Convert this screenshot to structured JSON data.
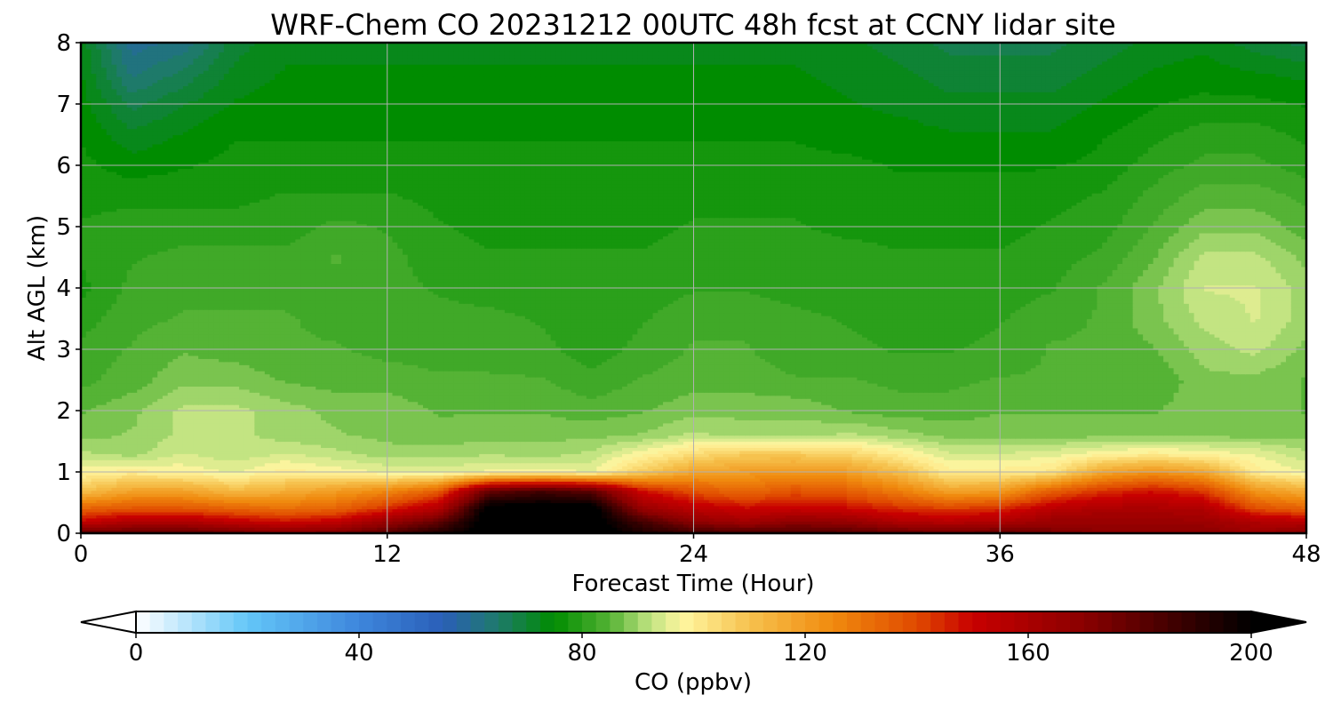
{
  "chart_data": {
    "type": "heatmap",
    "subtype": "filled-contour time-height cross-section",
    "title": "WRF-Chem CO  20231212 00UTC 48h fcst at CCNY lidar site",
    "xlabel": "Forecast Time (Hour)",
    "ylabel": "Alt AGL (km)",
    "xlim": [
      0,
      48
    ],
    "ylim": [
      0,
      8
    ],
    "xticks": [
      "0",
      "12",
      "24",
      "36",
      "48"
    ],
    "yticks": [
      "0",
      "1",
      "2",
      "3",
      "4",
      "5",
      "6",
      "7",
      "8"
    ],
    "grid": true,
    "colorbar": {
      "label": "CO  (ppbv)",
      "range": [
        0,
        200
      ],
      "ticks": [
        "0",
        "40",
        "80",
        "120",
        "160",
        "200"
      ],
      "extend": "both",
      "colors": [
        {
          "v": 0,
          "c": "#ffffff"
        },
        {
          "v": 20,
          "c": "#63c6f8"
        },
        {
          "v": 40,
          "c": "#3e86dc"
        },
        {
          "v": 55,
          "c": "#2a5fb8"
        },
        {
          "v": 65,
          "c": "#1e7a6a"
        },
        {
          "v": 75,
          "c": "#008c00"
        },
        {
          "v": 85,
          "c": "#55b335"
        },
        {
          "v": 92,
          "c": "#bde27f"
        },
        {
          "v": 98,
          "c": "#fff6a0"
        },
        {
          "v": 110,
          "c": "#f6c24e"
        },
        {
          "v": 125,
          "c": "#f08a0e"
        },
        {
          "v": 140,
          "c": "#e04a00"
        },
        {
          "v": 150,
          "c": "#c80000"
        },
        {
          "v": 170,
          "c": "#8a0000"
        },
        {
          "v": 200,
          "c": "#000000"
        }
      ]
    },
    "hours": [
      0,
      2,
      4,
      6,
      8,
      10,
      12,
      14,
      16,
      18,
      20,
      22,
      24,
      26,
      28,
      30,
      32,
      34,
      36,
      38,
      40,
      42,
      44,
      46,
      48
    ],
    "altitudes_km": [
      0,
      0.2,
      0.4,
      0.7,
      1.0,
      1.3,
      1.6,
      2.0,
      2.5,
      3.0,
      3.5,
      4.0,
      4.5,
      5.0,
      5.5,
      6.0,
      6.5,
      7.0,
      7.5,
      8.0
    ],
    "co_ppbv": [
      [
        180,
        180,
        181,
        178,
        173,
        175,
        182,
        195,
        205,
        205,
        205,
        195,
        188,
        185,
        185,
        183,
        180,
        178,
        180,
        175,
        170,
        170,
        170,
        165,
        172
      ],
      [
        150,
        158,
        158,
        152,
        148,
        152,
        165,
        178,
        205,
        205,
        205,
        185,
        168,
        162,
        168,
        166,
        158,
        155,
        158,
        165,
        165,
        165,
        164,
        158,
        155
      ],
      [
        135,
        138,
        138,
        135,
        132,
        135,
        145,
        158,
        205,
        205,
        205,
        166,
        155,
        150,
        152,
        150,
        145,
        142,
        145,
        155,
        160,
        160,
        158,
        140,
        135
      ],
      [
        110,
        118,
        118,
        112,
        115,
        120,
        125,
        135,
        178,
        185,
        180,
        148,
        138,
        132,
        138,
        135,
        128,
        118,
        120,
        135,
        143,
        148,
        142,
        122,
        115
      ],
      [
        98,
        100,
        98,
        96,
        100,
        98,
        96,
        95,
        97,
        98,
        96,
        108,
        118,
        120,
        122,
        120,
        112,
        100,
        100,
        102,
        118,
        123,
        118,
        100,
        96
      ],
      [
        92,
        90,
        94,
        92,
        94,
        92,
        90,
        90,
        91,
        90,
        92,
        98,
        104,
        108,
        108,
        106,
        100,
        94,
        94,
        95,
        98,
        100,
        98,
        96,
        92
      ],
      [
        88,
        89,
        92,
        92,
        90,
        89,
        88,
        87,
        88,
        88,
        88,
        89,
        92,
        90,
        90,
        92,
        90,
        88,
        88,
        88,
        88,
        88,
        88,
        88,
        88
      ],
      [
        86,
        88,
        92,
        92,
        90,
        88,
        88,
        86,
        86,
        86,
        85,
        86,
        88,
        88,
        88,
        86,
        85,
        85,
        86,
        86,
        86,
        86,
        88,
        88,
        86
      ],
      [
        83,
        85,
        88,
        88,
        86,
        85,
        85,
        84,
        84,
        84,
        82,
        84,
        85,
        85,
        84,
        84,
        83,
        83,
        84,
        84,
        84,
        84,
        88,
        88,
        86
      ],
      [
        82,
        84,
        86,
        85,
        84,
        84,
        83,
        83,
        83,
        82,
        80,
        82,
        84,
        84,
        82,
        82,
        81,
        81,
        82,
        84,
        84,
        86,
        90,
        92,
        88
      ],
      [
        80,
        83,
        84,
        84,
        84,
        83,
        82,
        82,
        82,
        81,
        79,
        81,
        83,
        83,
        82,
        81,
        80,
        80,
        81,
        83,
        84,
        88,
        92,
        94,
        90
      ],
      [
        78,
        82,
        83,
        83,
        83,
        83,
        82,
        81,
        80,
        80,
        79,
        80,
        81,
        81,
        80,
        80,
        79,
        79,
        80,
        81,
        84,
        88,
        94,
        94,
        90
      ],
      [
        79,
        81,
        82,
        82,
        82,
        84,
        82,
        80,
        79,
        79,
        79,
        79,
        80,
        80,
        80,
        80,
        79,
        79,
        79,
        80,
        82,
        86,
        92,
        92,
        88
      ],
      [
        79,
        80,
        80,
        80,
        80,
        82,
        81,
        79,
        78,
        78,
        78,
        78,
        79,
        79,
        79,
        78,
        78,
        78,
        78,
        79,
        80,
        84,
        88,
        88,
        85
      ],
      [
        78,
        78,
        78,
        78,
        79,
        79,
        79,
        78,
        78,
        78,
        78,
        78,
        78,
        78,
        78,
        78,
        77,
        77,
        77,
        78,
        79,
        82,
        85,
        85,
        83
      ],
      [
        77,
        75,
        76,
        77,
        77,
        77,
        77,
        77,
        77,
        77,
        77,
        77,
        77,
        77,
        77,
        77,
        76,
        76,
        76,
        76,
        77,
        80,
        82,
        82,
        80
      ],
      [
        76,
        72,
        74,
        76,
        76,
        76,
        76,
        76,
        76,
        76,
        76,
        76,
        76,
        76,
        76,
        75,
        75,
        74,
        74,
        74,
        76,
        78,
        80,
        80,
        78
      ],
      [
        75,
        68,
        71,
        74,
        75,
        75,
        75,
        75,
        75,
        75,
        75,
        75,
        75,
        75,
        75,
        74,
        73,
        72,
        72,
        72,
        74,
        76,
        77,
        77,
        76
      ],
      [
        74,
        63,
        67,
        72,
        74,
        74,
        74,
        74,
        74,
        74,
        74,
        74,
        74,
        74,
        74,
        73,
        72,
        70,
        70,
        70,
        72,
        74,
        75,
        74,
        73
      ],
      [
        73,
        60,
        62,
        70,
        73,
        73,
        73,
        73,
        73,
        73,
        73,
        73,
        73,
        73,
        73,
        72,
        70,
        68,
        68,
        68,
        70,
        72,
        73,
        70,
        68
      ]
    ]
  }
}
